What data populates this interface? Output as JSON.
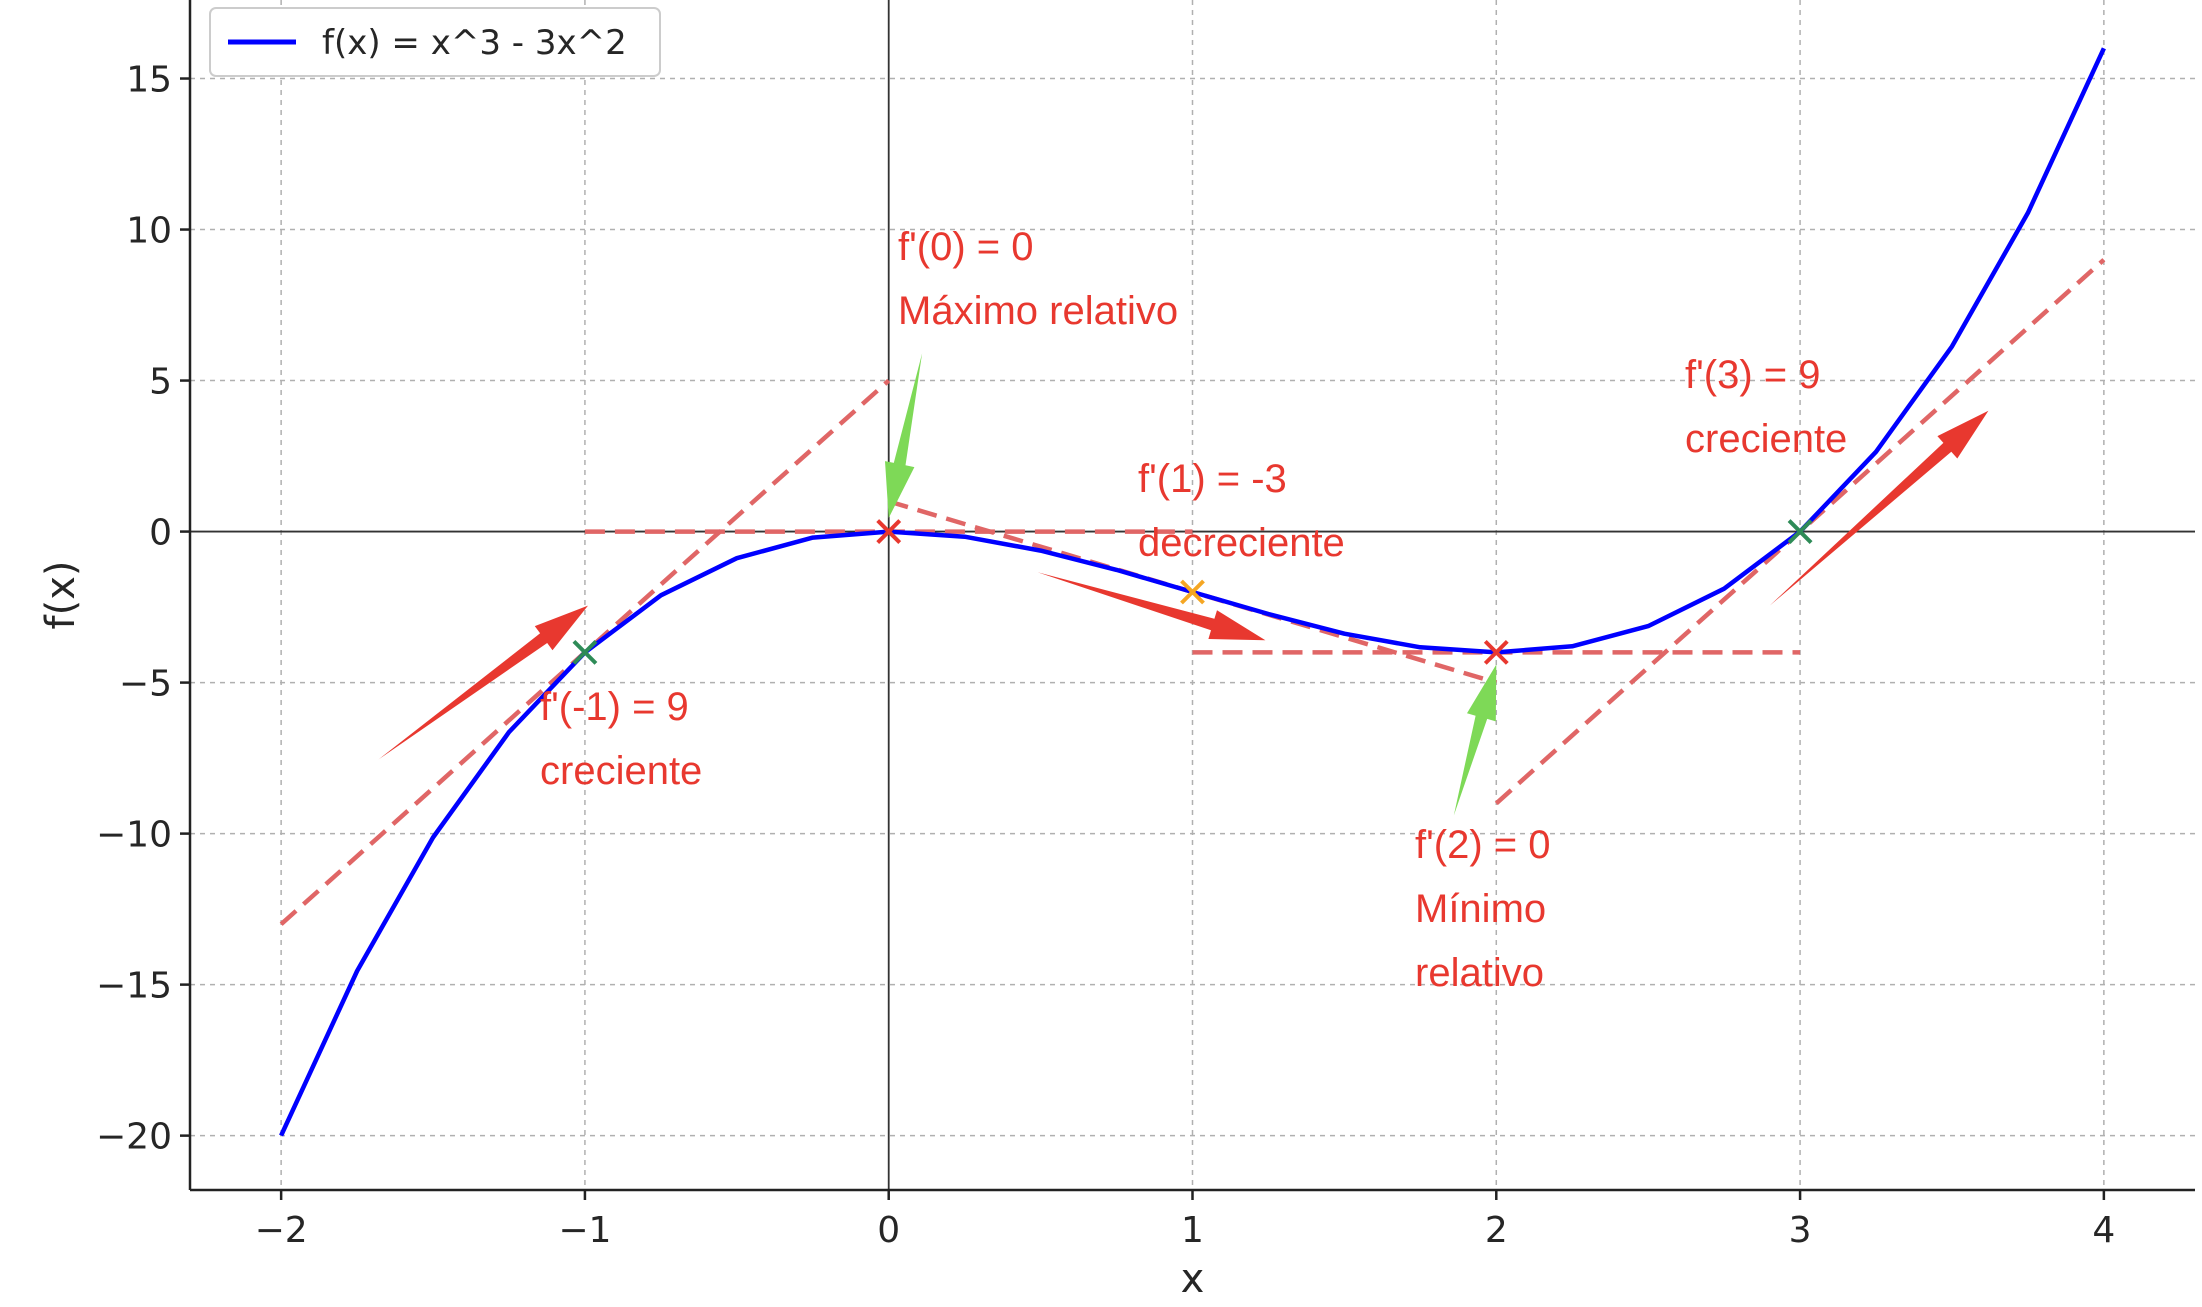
{
  "chart_data": {
    "type": "line",
    "xlabel": "x",
    "ylabel": "f(x)",
    "xlim": [
      -2.3,
      4.3
    ],
    "ylim": [
      -21.8,
      17.6
    ],
    "xticks": [
      -2,
      -1,
      0,
      1,
      2,
      3,
      4
    ],
    "xtick_labels": [
      "−2",
      "−1",
      "0",
      "1",
      "2",
      "3",
      "4"
    ],
    "yticks": [
      -20,
      -15,
      -10,
      -5,
      0,
      5,
      10,
      15
    ],
    "ytick_labels": [
      "−20",
      "−15",
      "−10",
      "−5",
      "0",
      "5",
      "10",
      "15"
    ],
    "grid": true,
    "legend": {
      "position": "top-left"
    },
    "series": [
      {
        "name": "f(x) = x^3 - 3x^2",
        "color": "#0000ff",
        "x": [
          -2,
          -1.75,
          -1.5,
          -1.25,
          -1,
          -0.75,
          -0.5,
          -0.25,
          0,
          0.25,
          0.5,
          0.75,
          1,
          1.25,
          1.5,
          1.75,
          2,
          2.25,
          2.5,
          2.75,
          3,
          3.25,
          3.5,
          3.75,
          4
        ],
        "y": [
          -20,
          -14.55,
          -10.13,
          -6.64,
          -4,
          -2.11,
          -0.88,
          -0.2,
          0,
          -0.17,
          -0.63,
          -1.27,
          -2,
          -2.73,
          -3.38,
          -3.83,
          -4,
          -3.8,
          -3.13,
          -1.89,
          0,
          2.64,
          6.13,
          10.55,
          16
        ]
      }
    ],
    "tangent_lines": [
      {
        "x": [
          -2,
          0
        ],
        "y": [
          -13,
          5
        ],
        "color": "#e06666"
      },
      {
        "x": [
          -1,
          1
        ],
        "y": [
          0,
          0
        ],
        "color": "#e06666"
      },
      {
        "x": [
          0,
          2
        ],
        "y": [
          1,
          -5
        ],
        "color": "#e06666"
      },
      {
        "x": [
          1,
          3
        ],
        "y": [
          -4,
          -4
        ],
        "color": "#e06666"
      },
      {
        "x": [
          2,
          4
        ],
        "y": [
          -9,
          9
        ],
        "color": "#e06666"
      }
    ],
    "markers": [
      {
        "x": -1,
        "y": -4,
        "color": "#2e8b57"
      },
      {
        "x": 0,
        "y": 0,
        "color": "#e8382f"
      },
      {
        "x": 1,
        "y": -2,
        "color": "#f5a623"
      },
      {
        "x": 2,
        "y": -4,
        "color": "#e8382f"
      },
      {
        "x": 3,
        "y": 0,
        "color": "#2e8b57"
      }
    ],
    "annotations": [
      {
        "lines": [
          "f'(0) = 0",
          "Máximo relativo"
        ]
      },
      {
        "lines": [
          "f'(1) = -3",
          "decreciente"
        ]
      },
      {
        "lines": [
          "f'(3) = 9",
          "creciente"
        ]
      },
      {
        "lines": [
          "f'(-1) = 9",
          "creciente"
        ]
      },
      {
        "lines": [
          "f'(2) = 0",
          "Mínimo",
          "relativo"
        ]
      }
    ],
    "arrows": [
      {
        "from": [
          -1.68,
          -7.55
        ],
        "to": [
          -0.99,
          -2.45
        ],
        "color": "#e8382f"
      },
      {
        "from": [
          0.49,
          -1.35
        ],
        "to": [
          1.24,
          -3.6
        ],
        "color": "#e8382f"
      },
      {
        "from": [
          2.9,
          -2.45
        ],
        "to": [
          3.62,
          4.0
        ],
        "color": "#e8382f"
      },
      {
        "from": [
          0.11,
          5.9
        ],
        "to": [
          0.0,
          0.45
        ],
        "color": "#7ed957"
      },
      {
        "from": [
          1.86,
          -9.4
        ],
        "to": [
          2.0,
          -4.4
        ],
        "color": "#7ed957"
      }
    ]
  }
}
